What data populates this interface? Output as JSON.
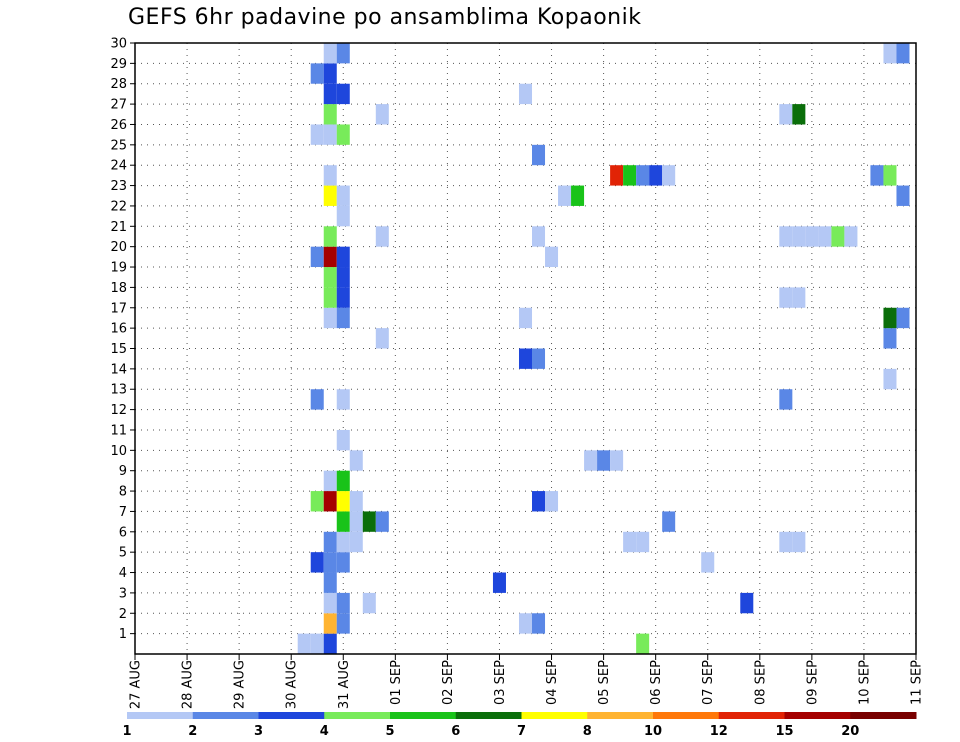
{
  "title": "GEFS 6hr padavine po ansamblima Kopaonik",
  "chart_data": {
    "type": "heatmap",
    "title": "GEFS 6hr padavine po ansamblima Kopaonik",
    "x_tick_labels": [
      "27 AUG",
      "28 AUG",
      "29 AUG",
      "30 AUG",
      "31 AUG",
      "01 SEP",
      "02 SEP",
      "03 SEP",
      "04 SEP",
      "05 SEP",
      "06 SEP",
      "07 SEP",
      "08 SEP",
      "09 SEP",
      "10 SEP",
      "11 SEP"
    ],
    "y_range": [
      0,
      30
    ],
    "y_tick_labels": [
      "1",
      "2",
      "3",
      "4",
      "5",
      "6",
      "7",
      "8",
      "9",
      "10",
      "11",
      "12",
      "13",
      "14",
      "15",
      "16",
      "17",
      "18",
      "19",
      "20",
      "21",
      "22",
      "23",
      "24",
      "25",
      "26",
      "27",
      "28",
      "29",
      "30"
    ],
    "grid": true,
    "colorbar": {
      "labels": [
        "1",
        "2",
        "3",
        "4",
        "5",
        "6",
        "7",
        "8",
        "10",
        "12",
        "15",
        "20"
      ],
      "levels": [
        1,
        2,
        3,
        4,
        5,
        6,
        7,
        8,
        10,
        12,
        15,
        20
      ],
      "colors": [
        "#b4c8f5",
        "#5a87e6",
        "#1e46dc",
        "#78eb5a",
        "#19c319",
        "#0a6e0a",
        "#ffff00",
        "#ffb432",
        "#ff780a",
        "#e12305",
        "#a50000",
        "#780000"
      ]
    },
    "cells": [
      {
        "t": "30 AUG 06",
        "m": 0,
        "v": 1.5
      },
      {
        "t": "30 AUG 12",
        "m": 0,
        "v": 1.5
      },
      {
        "t": "30 AUG 18",
        "m": 0,
        "v": 3.5
      },
      {
        "t": "30 AUG 18",
        "m": 1,
        "v": 9
      },
      {
        "t": "31 AUG 00",
        "m": 1,
        "v": 2.5
      },
      {
        "t": "30 AUG 18",
        "m": 2,
        "v": 1.5
      },
      {
        "t": "31 AUG 00",
        "m": 2,
        "v": 2.5
      },
      {
        "t": "31 AUG 12",
        "m": 2,
        "v": 1.5
      },
      {
        "t": "30 AUG 18",
        "m": 3,
        "v": 2.5
      },
      {
        "t": "30 AUG 12",
        "m": 4,
        "v": 3.5
      },
      {
        "t": "30 AUG 18",
        "m": 4,
        "v": 2.5
      },
      {
        "t": "31 AUG 00",
        "m": 4,
        "v": 2.5
      },
      {
        "t": "30 AUG 18",
        "m": 5,
        "v": 2.5
      },
      {
        "t": "31 AUG 00",
        "m": 5,
        "v": 1.5
      },
      {
        "t": "31 AUG 06",
        "m": 5,
        "v": 1.5
      },
      {
        "t": "31 AUG 00",
        "m": 6,
        "v": 5.5
      },
      {
        "t": "31 AUG 06",
        "m": 6,
        "v": 1.5
      },
      {
        "t": "31 AUG 12",
        "m": 6,
        "v": 6.5
      },
      {
        "t": "31 AUG 18",
        "m": 6,
        "v": 2.5
      },
      {
        "t": "30 AUG 12",
        "m": 7,
        "v": 4.5
      },
      {
        "t": "30 AUG 18",
        "m": 7,
        "v": 16
      },
      {
        "t": "31 AUG 00",
        "m": 7,
        "v": 7.5
      },
      {
        "t": "31 AUG 06",
        "m": 7,
        "v": 1.5
      },
      {
        "t": "30 AUG 18",
        "m": 8,
        "v": 1.5
      },
      {
        "t": "31 AUG 00",
        "m": 8,
        "v": 5.5
      },
      {
        "t": "31 AUG 06",
        "m": 9,
        "v": 1.5
      },
      {
        "t": "31 AUG 00",
        "m": 10,
        "v": 1.5
      },
      {
        "t": "30 AUG 12",
        "m": 12,
        "v": 2.5
      },
      {
        "t": "31 AUG 00",
        "m": 12,
        "v": 1.5
      },
      {
        "t": "31 AUG 18",
        "m": 15,
        "v": 1.5
      },
      {
        "t": "30 AUG 18",
        "m": 16,
        "v": 1.5
      },
      {
        "t": "31 AUG 00",
        "m": 16,
        "v": 2.5
      },
      {
        "t": "30 AUG 18",
        "m": 17,
        "v": 4.5
      },
      {
        "t": "31 AUG 00",
        "m": 17,
        "v": 3.5
      },
      {
        "t": "30 AUG 18",
        "m": 18,
        "v": 4.5
      },
      {
        "t": "31 AUG 00",
        "m": 18,
        "v": 3.5
      },
      {
        "t": "30 AUG 12",
        "m": 19,
        "v": 2.5
      },
      {
        "t": "30 AUG 18",
        "m": 19,
        "v": 16
      },
      {
        "t": "31 AUG 00",
        "m": 19,
        "v": 3.5
      },
      {
        "t": "30 AUG 18",
        "m": 20,
        "v": 4.5
      },
      {
        "t": "31 AUG 18",
        "m": 20,
        "v": 1.5
      },
      {
        "t": "31 AUG 00",
        "m": 21,
        "v": 1.5
      },
      {
        "t": "30 AUG 18",
        "m": 22,
        "v": 7.5
      },
      {
        "t": "31 AUG 00",
        "m": 22,
        "v": 1.5
      },
      {
        "t": "30 AUG 18",
        "m": 23,
        "v": 1.5
      },
      {
        "t": "30 AUG 12",
        "m": 25,
        "v": 1.5
      },
      {
        "t": "30 AUG 18",
        "m": 25,
        "v": 1.5
      },
      {
        "t": "31 AUG 00",
        "m": 25,
        "v": 4.5
      },
      {
        "t": "30 AUG 18",
        "m": 26,
        "v": 4.5
      },
      {
        "t": "31 AUG 18",
        "m": 26,
        "v": 1.5
      },
      {
        "t": "30 AUG 18",
        "m": 27,
        "v": 3.5
      },
      {
        "t": "31 AUG 00",
        "m": 27,
        "v": 3.5
      },
      {
        "t": "30 AUG 12",
        "m": 28,
        "v": 2.5
      },
      {
        "t": "30 AUG 18",
        "m": 28,
        "v": 3.5
      },
      {
        "t": "30 AUG 18",
        "m": 29,
        "v": 1.5
      },
      {
        "t": "31 AUG 00",
        "m": 29,
        "v": 2.5
      },
      {
        "t": "03 SEP 00",
        "m": 3,
        "v": 3.5
      },
      {
        "t": "03 SEP 12",
        "m": 1,
        "v": 1.5
      },
      {
        "t": "03 SEP 18",
        "m": 1,
        "v": 2.5
      },
      {
        "t": "03 SEP 12",
        "m": 14,
        "v": 3.5
      },
      {
        "t": "03 SEP 18",
        "m": 14,
        "v": 2.5
      },
      {
        "t": "03 SEP 12",
        "m": 16,
        "v": 1.5
      },
      {
        "t": "03 SEP 12",
        "m": 27,
        "v": 1.5
      },
      {
        "t": "03 SEP 18",
        "m": 7,
        "v": 3.5
      },
      {
        "t": "04 SEP 00",
        "m": 7,
        "v": 1.5
      },
      {
        "t": "03 SEP 18",
        "m": 20,
        "v": 1.5
      },
      {
        "t": "03 SEP 18",
        "m": 24,
        "v": 2.5
      },
      {
        "t": "04 SEP 00",
        "m": 19,
        "v": 1.5
      },
      {
        "t": "04 SEP 06",
        "m": 22,
        "v": 1.5
      },
      {
        "t": "04 SEP 12",
        "m": 22,
        "v": 5.5
      },
      {
        "t": "04 SEP 18",
        "m": 9,
        "v": 1.5
      },
      {
        "t": "05 SEP 00",
        "m": 9,
        "v": 2.5
      },
      {
        "t": "05 SEP 06",
        "m": 9,
        "v": 1.5
      },
      {
        "t": "05 SEP 12",
        "m": 5,
        "v": 1.5
      },
      {
        "t": "05 SEP 18",
        "m": 5,
        "v": 1.5
      },
      {
        "t": "05 SEP 06",
        "m": 23,
        "v": 13
      },
      {
        "t": "05 SEP 12",
        "m": 23,
        "v": 5.5
      },
      {
        "t": "05 SEP 18",
        "m": 23,
        "v": 2.5
      },
      {
        "t": "06 SEP 00",
        "m": 23,
        "v": 3.5
      },
      {
        "t": "06 SEP 06",
        "m": 23,
        "v": 1.5
      },
      {
        "t": "05 SEP 18",
        "m": 0,
        "v": 4.5
      },
      {
        "t": "06 SEP 06",
        "m": 6,
        "v": 2.5
      },
      {
        "t": "07 SEP 00",
        "m": 4,
        "v": 1.5
      },
      {
        "t": "07 SEP 18",
        "m": 2,
        "v": 3.5
      },
      {
        "t": "08 SEP 12",
        "m": 5,
        "v": 1.5
      },
      {
        "t": "08 SEP 18",
        "m": 5,
        "v": 1.5
      },
      {
        "t": "08 SEP 12",
        "m": 12,
        "v": 2.5
      },
      {
        "t": "08 SEP 12",
        "m": 17,
        "v": 1.5
      },
      {
        "t": "08 SEP 18",
        "m": 17,
        "v": 1.5
      },
      {
        "t": "08 SEP 12",
        "m": 20,
        "v": 1.5
      },
      {
        "t": "08 SEP 18",
        "m": 20,
        "v": 1.5
      },
      {
        "t": "09 SEP 00",
        "m": 20,
        "v": 1.5
      },
      {
        "t": "09 SEP 06",
        "m": 20,
        "v": 1.5
      },
      {
        "t": "09 SEP 12",
        "m": 20,
        "v": 4.5
      },
      {
        "t": "09 SEP 18",
        "m": 20,
        "v": 1.5
      },
      {
        "t": "08 SEP 12",
        "m": 26,
        "v": 1.5
      },
      {
        "t": "08 SEP 18",
        "m": 26,
        "v": 6.5
      },
      {
        "t": "10 SEP 12",
        "m": 13,
        "v": 1.5
      },
      {
        "t": "10 SEP 12",
        "m": 15,
        "v": 2.5
      },
      {
        "t": "10 SEP 12",
        "m": 16,
        "v": 6.5
      },
      {
        "t": "10 SEP 18",
        "m": 16,
        "v": 2.5
      },
      {
        "t": "10 SEP 06",
        "m": 23,
        "v": 2.5
      },
      {
        "t": "10 SEP 12",
        "m": 23,
        "v": 4.5
      },
      {
        "t": "10 SEP 18",
        "m": 22,
        "v": 2.5
      },
      {
        "t": "10 SEP 12",
        "m": 29,
        "v": 1.5
      },
      {
        "t": "10 SEP 18",
        "m": 29,
        "v": 2.5
      }
    ]
  }
}
